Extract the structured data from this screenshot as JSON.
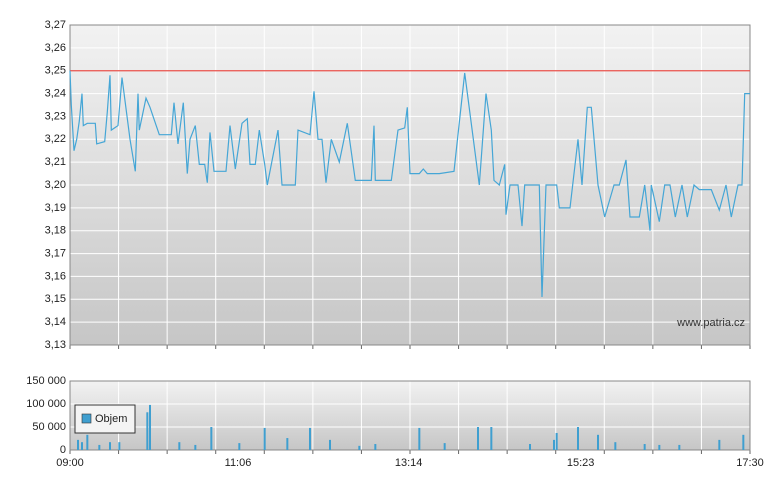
{
  "chart_data": [
    {
      "type": "line",
      "color": "#45a6d6",
      "reference_line": 3.25,
      "reference_color": "#e8504a",
      "watermark": "www.patria.cz",
      "xlim": [
        "09:00",
        "17:30"
      ],
      "ylim": [
        3.13,
        3.27
      ],
      "yticks": [
        {
          "value": 3.13,
          "label": "3,13"
        },
        {
          "value": 3.14,
          "label": "3,14"
        },
        {
          "value": 3.15,
          "label": "3,15"
        },
        {
          "value": 3.16,
          "label": "3,16"
        },
        {
          "value": 3.17,
          "label": "3,17"
        },
        {
          "value": 3.18,
          "label": "3,18"
        },
        {
          "value": 3.19,
          "label": "3,19"
        },
        {
          "value": 3.2,
          "label": "3,20"
        },
        {
          "value": 3.21,
          "label": "3,21"
        },
        {
          "value": 3.22,
          "label": "3,22"
        },
        {
          "value": 3.23,
          "label": "3,23"
        },
        {
          "value": 3.24,
          "label": "3,24"
        },
        {
          "value": 3.25,
          "label": "3,25"
        },
        {
          "value": 3.26,
          "label": "3,26"
        },
        {
          "value": 3.27,
          "label": "3,27"
        }
      ],
      "x": [
        "09:00",
        "09:01",
        "09:03",
        "09:05",
        "09:07",
        "09:09",
        "09:10",
        "09:13",
        "09:19",
        "09:20",
        "09:26",
        "09:28",
        "09:30",
        "09:31",
        "09:36",
        "09:39",
        "09:45",
        "09:49",
        "09:51",
        "09:52",
        "09:57",
        "10:00",
        "10:07",
        "10:16",
        "10:18",
        "10:21",
        "10:25",
        "10:28",
        "10:30",
        "10:34",
        "10:37",
        "10:41",
        "10:43",
        "10:45",
        "10:48",
        "10:57",
        "11:00",
        "11:04",
        "11:09",
        "11:13",
        "11:15",
        "11:19",
        "11:22",
        "11:26",
        "11:28",
        "11:36",
        "11:39",
        "11:49",
        "11:51",
        "12:00",
        "12:03",
        "12:06",
        "12:09",
        "12:12",
        "12:16",
        "12:22",
        "12:28",
        "12:34",
        "12:46",
        "12:48",
        "12:49",
        "13:01",
        "13:06",
        "13:11",
        "13:13",
        "13:15",
        "13:22",
        "13:25",
        "13:28",
        "13:37",
        "13:48",
        "13:56",
        "14:07",
        "14:12",
        "14:16",
        "14:18",
        "14:22",
        "14:26",
        "14:27",
        "14:30",
        "14:36",
        "14:39",
        "14:41",
        "14:52",
        "14:54",
        "14:57",
        "15:05",
        "15:07",
        "15:15",
        "15:21",
        "15:24",
        "15:28",
        "15:31",
        "15:36",
        "15:41",
        "15:48",
        "15:52",
        "15:57",
        "16:00",
        "16:07",
        "16:11",
        "16:15",
        "16:16",
        "16:22",
        "16:26",
        "16:30",
        "16:34",
        "16:39",
        "16:43",
        "16:48",
        "16:52",
        "17:01",
        "17:07",
        "17:12",
        "17:16",
        "17:21",
        "17:24",
        "17:26",
        "17:30"
      ],
      "values": [
        3.25,
        3.235,
        3.215,
        3.22,
        3.228,
        3.24,
        3.226,
        3.227,
        3.227,
        3.218,
        3.219,
        3.232,
        3.248,
        3.224,
        3.226,
        3.247,
        3.22,
        3.206,
        3.24,
        3.224,
        3.238,
        3.234,
        3.222,
        3.222,
        3.236,
        3.218,
        3.236,
        3.205,
        3.22,
        3.226,
        3.209,
        3.209,
        3.201,
        3.223,
        3.206,
        3.206,
        3.226,
        3.207,
        3.227,
        3.229,
        3.209,
        3.209,
        3.224,
        3.209,
        3.2,
        3.224,
        3.2,
        3.2,
        3.224,
        3.222,
        3.241,
        3.22,
        3.22,
        3.201,
        3.22,
        3.21,
        3.227,
        3.202,
        3.202,
        3.226,
        3.202,
        3.202,
        3.224,
        3.225,
        3.234,
        3.205,
        3.205,
        3.207,
        3.205,
        3.205,
        3.206,
        3.249,
        3.2,
        3.24,
        3.224,
        3.202,
        3.2,
        3.209,
        3.187,
        3.2,
        3.2,
        3.182,
        3.2,
        3.2,
        3.151,
        3.2,
        3.2,
        3.19,
        3.19,
        3.22,
        3.2,
        3.234,
        3.234,
        3.2,
        3.186,
        3.2,
        3.2,
        3.211,
        3.186,
        3.186,
        3.2,
        3.18,
        3.2,
        3.184,
        3.2,
        3.2,
        3.186,
        3.2,
        3.186,
        3.2,
        3.198,
        3.198,
        3.189,
        3.2,
        3.186,
        3.2,
        3.2,
        3.24,
        3.24
      ]
    },
    {
      "type": "bar",
      "color": "#3f9fd0",
      "legend": "left",
      "series_name": "Objem",
      "xlim": [
        "09:00",
        "17:30"
      ],
      "xticks": [
        "09:00",
        "11:06",
        "13:14",
        "15:23",
        "17:30"
      ],
      "ylim": [
        0,
        150000
      ],
      "yticks": [
        0,
        {
          "value": 50000,
          "label": "50 000"
        },
        {
          "value": 100000,
          "label": "100 000"
        },
        {
          "value": 150000,
          "label": "150 000"
        }
      ],
      "x": [
        "09:06",
        "09:09",
        "09:13",
        "09:22",
        "09:30",
        "09:37",
        "09:58",
        "10:00",
        "10:22",
        "10:34",
        "10:46",
        "11:07",
        "11:26",
        "11:43",
        "12:00",
        "12:15",
        "12:37",
        "12:49",
        "13:22",
        "13:41",
        "14:06",
        "14:16",
        "14:45",
        "15:03",
        "15:05",
        "15:21",
        "15:36",
        "15:49",
        "16:11",
        "16:22",
        "16:37",
        "17:07",
        "17:25"
      ],
      "values": [
        22000,
        17000,
        33000,
        11000,
        17000,
        17000,
        82000,
        98000,
        17000,
        11000,
        50000,
        15000,
        48000,
        26000,
        48000,
        22000,
        9000,
        13000,
        48000,
        15000,
        50000,
        50000,
        13000,
        22000,
        37000,
        50000,
        33000,
        17000,
        13000,
        11000,
        11000,
        22000,
        33000
      ]
    }
  ]
}
